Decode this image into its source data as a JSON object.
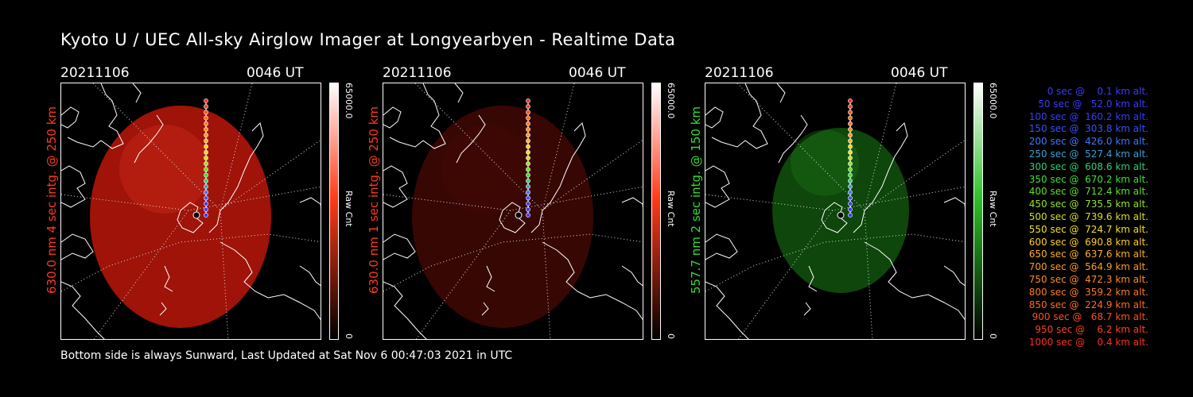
{
  "title": "Kyoto U / UEC All-sky Airglow Imager at Longyearbyen - Realtime Data",
  "footer": "Bottom side is always Sunward, Last Updated at Sat Nov  6 00:47:03 2021 in UTC",
  "panels": [
    {
      "date": "20211106",
      "time": "0046 UT",
      "ylabel": "630.0 nm 4 sec intg. @ 250 km",
      "label_color": "#ff3a1a",
      "cbar_max": "65000.0",
      "cbar_min": "0",
      "cbar_unit": "Raw Cnt",
      "image_fill": "#a8140a",
      "image_glow": "#d8321c",
      "image_opacity": 0.95,
      "cbar_top": "#ffffff",
      "cbar_mid": "#ff3a1a",
      "cbar_bottom": "#000000"
    },
    {
      "date": "20211106",
      "time": "0046 UT",
      "ylabel": "630.0 nm 1 sec intg. @ 250 km",
      "label_color": "#ff3a1a",
      "cbar_max": "65000.0",
      "cbar_min": "0",
      "cbar_unit": "Raw Cnt",
      "image_fill": "#3a0704",
      "image_glow": "#4a0c06",
      "image_opacity": 0.95,
      "cbar_top": "#ffffff",
      "cbar_mid": "#ff3a1a",
      "cbar_bottom": "#000000"
    },
    {
      "date": "20211106",
      "time": "0046 UT",
      "ylabel": "557.7 nm 2 sec intg. @ 150 km",
      "label_color": "#33dd33",
      "cbar_max": "65000.0",
      "cbar_min": "0",
      "cbar_unit": "Raw Cnt",
      "image_fill": "#0f4a0c",
      "image_glow": "#1f7a1a",
      "image_opacity": 0.95,
      "cbar_top": "#ffffff",
      "cbar_mid": "#2fbf2a",
      "cbar_bottom": "#000000"
    }
  ],
  "legend": [
    {
      "text": "0 sec @    0.1 km alt.",
      "color": "#3a3aff"
    },
    {
      "text": "50 sec @   52.0 km alt.",
      "color": "#3a3aff"
    },
    {
      "text": "100 sec @  160.2 km alt.",
      "color": "#3a3aff"
    },
    {
      "text": "150 sec @  303.8 km alt.",
      "color": "#3a50ff"
    },
    {
      "text": "200 sec @  426.0 km alt.",
      "color": "#3a78ff"
    },
    {
      "text": "250 sec @  527.4 km alt.",
      "color": "#3aa0d0"
    },
    {
      "text": "300 sec @  608.6 km alt.",
      "color": "#2fcf7a"
    },
    {
      "text": "350 sec @  670.2 km alt.",
      "color": "#3ae03a"
    },
    {
      "text": "400 sec @  712.4 km alt.",
      "color": "#5ae02a"
    },
    {
      "text": "450 sec @  735.5 km alt.",
      "color": "#9ae02a"
    },
    {
      "text": "500 sec @  739.6 km alt.",
      "color": "#d0e020"
    },
    {
      "text": "550 sec @  724.7 km alt.",
      "color": "#f0e020"
    },
    {
      "text": "600 sec @  690.8 km alt.",
      "color": "#ffd020"
    },
    {
      "text": "650 sec @  637.6 km alt.",
      "color": "#ffb020"
    },
    {
      "text": "700 sec @  564.9 km alt.",
      "color": "#ff9a20"
    },
    {
      "text": "750 sec @  472.3 km alt.",
      "color": "#ff8a20"
    },
    {
      "text": "800 sec @  359.2 km alt.",
      "color": "#ff7a20"
    },
    {
      "text": "850 sec @  224.9 km alt.",
      "color": "#ff6a20"
    },
    {
      "text": "900 sec @   68.7 km alt.",
      "color": "#ff5020"
    },
    {
      "text": "950 sec @    6.2 km alt.",
      "color": "#ff4020"
    },
    {
      "text": "1000 sec @    0.4 km alt.",
      "color": "#ff3020"
    }
  ]
}
